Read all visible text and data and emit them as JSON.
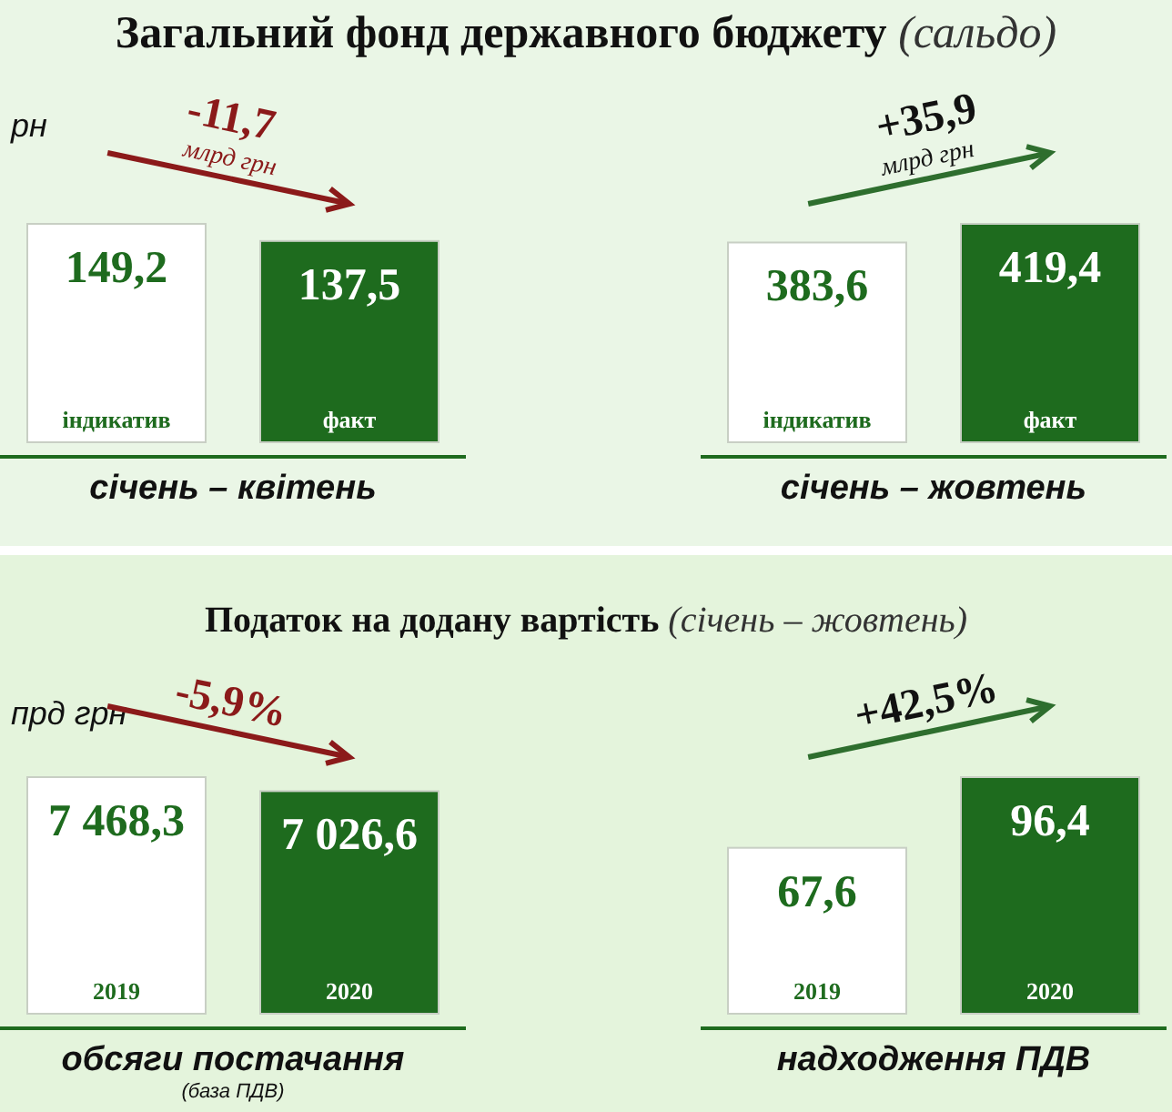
{
  "chart_data": [
    {
      "type": "other",
      "title": "Загальний фонд державного бюджету",
      "subtitle": "(сальдо)"
    },
    {
      "type": "bar",
      "ylabel": "рн",
      "xlabel": "січень – квітень",
      "categories": [
        "індикатив",
        "факт"
      ],
      "values": [
        149.2,
        137.5
      ],
      "value_labels": [
        "149,2",
        "137,5"
      ],
      "colors": [
        "#ffffff",
        "#1e6b1e"
      ],
      "annotations": [
        "-11,7",
        "млрд грн"
      ]
    },
    {
      "type": "bar",
      "xlabel": "січень – жовтень",
      "categories": [
        "індикатив",
        "факт"
      ],
      "values": [
        383.6,
        419.4
      ],
      "value_labels": [
        "383,6",
        "419,4"
      ],
      "colors": [
        "#ffffff",
        "#1e6b1e"
      ],
      "annotations": [
        "+35,9",
        "млрд грн"
      ]
    },
    {
      "type": "other",
      "title": "Податок на додану вартість",
      "subtitle": "(січень – жовтень)"
    },
    {
      "type": "bar",
      "ylabel": "прд грн",
      "xlabel": "обсяги постачання\n(база ПДВ)",
      "categories": [
        "2019",
        "2020"
      ],
      "values": [
        7468.3,
        7026.6
      ],
      "value_labels": [
        "7 468,3",
        "7 026,6"
      ],
      "colors": [
        "#ffffff",
        "#1e6b1e"
      ],
      "annotations": [
        "-5,9%"
      ]
    },
    {
      "type": "bar",
      "xlabel": "надходження ПДВ",
      "categories": [
        "2019",
        "2020"
      ],
      "values": [
        67.6,
        96.4
      ],
      "value_labels": [
        "67,6",
        "96,4"
      ],
      "colors": [
        "#ffffff",
        "#1e6b1e"
      ],
      "annotations": [
        "+42,5%"
      ]
    }
  ]
}
